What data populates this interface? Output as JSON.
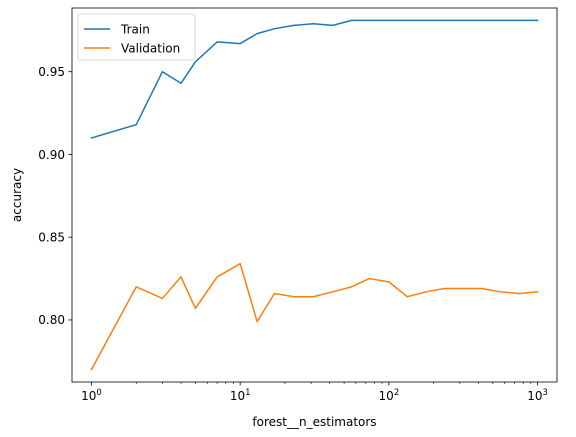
{
  "chart_data": {
    "type": "line",
    "title": "",
    "xlabel": "forest__n_estimators",
    "ylabel": "accuracy",
    "xscale": "log",
    "xlim": [
      0.74,
      1350
    ],
    "ylim": [
      0.7625,
      0.9885
    ],
    "xticks": [
      {
        "value": 1,
        "base": "10",
        "exp": "0"
      },
      {
        "value": 10,
        "base": "10",
        "exp": "1"
      },
      {
        "value": 100,
        "base": "10",
        "exp": "2"
      },
      {
        "value": 1000,
        "base": "10",
        "exp": "3"
      }
    ],
    "yticks": [
      {
        "value": 0.8,
        "label": "0.80"
      },
      {
        "value": 0.85,
        "label": "0.85"
      },
      {
        "value": 0.9,
        "label": "0.90"
      },
      {
        "value": 0.95,
        "label": "0.95"
      }
    ],
    "grid": false,
    "legend_position": "top-left",
    "x": [
      1,
      2,
      3,
      4,
      5,
      7,
      10,
      13,
      17,
      23,
      31,
      42,
      56,
      74,
      100,
      133,
      178,
      237,
      316,
      422,
      562,
      750,
      1000
    ],
    "series": [
      {
        "name": "Train",
        "color": "#1f77b4",
        "values": [
          0.91,
          0.918,
          0.95,
          0.943,
          0.956,
          0.968,
          0.967,
          0.973,
          0.976,
          0.978,
          0.979,
          0.978,
          0.981,
          0.981,
          0.981,
          0.981,
          0.981,
          0.981,
          0.981,
          0.981,
          0.981,
          0.981,
          0.981
        ]
      },
      {
        "name": "Validation",
        "color": "#ff7f0e",
        "values": [
          0.77,
          0.82,
          0.813,
          0.826,
          0.807,
          0.826,
          0.834,
          0.799,
          0.816,
          0.814,
          0.814,
          0.817,
          0.82,
          0.825,
          0.823,
          0.814,
          0.817,
          0.819,
          0.819,
          0.819,
          0.817,
          0.816,
          0.817
        ]
      }
    ]
  }
}
